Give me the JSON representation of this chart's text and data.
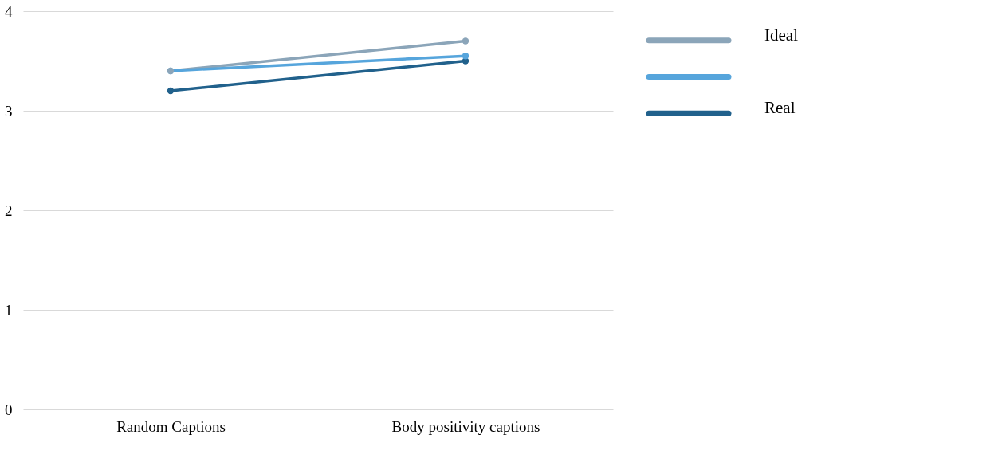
{
  "chart_data": {
    "type": "line",
    "categories": [
      "Random Captions",
      "Body positivity captions"
    ],
    "series": [
      {
        "name": "Ideal",
        "color": "#8ba5b9",
        "values": [
          3.4,
          3.7
        ]
      },
      {
        "name": null,
        "color": "#56a5dc",
        "values": [
          3.4,
          3.55
        ]
      },
      {
        "name": "Real",
        "color": "#21618c",
        "values": [
          3.2,
          3.5
        ]
      }
    ],
    "ylim": [
      0,
      4
    ],
    "yticks": [
      0,
      1,
      2,
      3,
      4
    ],
    "grid": "y",
    "legend": "top right",
    "marker": "circle",
    "line_style": "solid"
  }
}
